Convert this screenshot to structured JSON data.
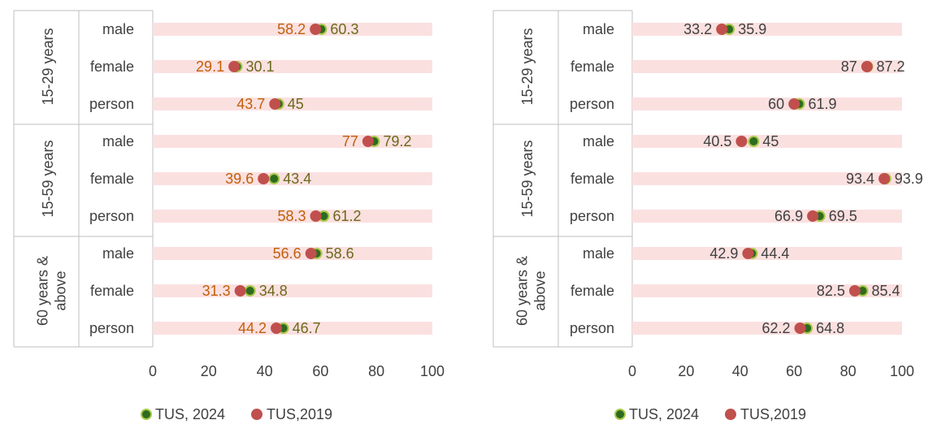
{
  "colors": {
    "band": "#fbe0e0",
    "tus2024_fill": "#2e6b1f",
    "tus2024_stroke": "#a9c948",
    "tus2019_fill": "#c0504d",
    "left_label_2019": "#c0600a",
    "left_label_2024": "#6a6a1a",
    "right_label": "#404040",
    "frame": "#bfbfbf"
  },
  "chart_data": [
    {
      "type": "dot",
      "xlim": [
        0,
        100
      ],
      "xticks": [
        0,
        20,
        40,
        60,
        80,
        100
      ],
      "legend": [
        "TUS, 2024",
        "TUS,2019"
      ],
      "groups": [
        {
          "label": "15-29 years",
          "rows": [
            {
              "cat": "male",
              "v2019": 58.2,
              "v2024": 60.3
            },
            {
              "cat": "female",
              "v2019": 29.1,
              "v2024": 30.1
            },
            {
              "cat": "person",
              "v2019": 43.7,
              "v2024": 45
            }
          ]
        },
        {
          "label": "15-59 years",
          "rows": [
            {
              "cat": "male",
              "v2019": 77,
              "v2024": 79.2
            },
            {
              "cat": "female",
              "v2019": 39.6,
              "v2024": 43.4
            },
            {
              "cat": "person",
              "v2019": 58.3,
              "v2024": 61.2
            }
          ]
        },
        {
          "label": "60 years & above",
          "label_lines": [
            "60 years &",
            "above"
          ],
          "rows": [
            {
              "cat": "male",
              "v2019": 56.6,
              "v2024": 58.6
            },
            {
              "cat": "female",
              "v2019": 31.3,
              "v2024": 34.8
            },
            {
              "cat": "person",
              "v2019": 44.2,
              "v2024": 46.7
            }
          ]
        }
      ]
    },
    {
      "type": "dot",
      "xlim": [
        0,
        100
      ],
      "xticks": [
        0,
        20,
        40,
        60,
        80,
        100
      ],
      "legend": [
        "TUS, 2024",
        "TUS,2019"
      ],
      "groups": [
        {
          "label": "15-29 years",
          "rows": [
            {
              "cat": "male",
              "v2019": 33.2,
              "v2024": 35.9
            },
            {
              "cat": "female",
              "v2019": 87,
              "v2024": 87.2
            },
            {
              "cat": "person",
              "v2019": 60,
              "v2024": 61.9
            }
          ]
        },
        {
          "label": "15-59 years",
          "rows": [
            {
              "cat": "male",
              "v2019": 40.5,
              "v2024": 45
            },
            {
              "cat": "female",
              "v2019": 93.4,
              "v2024": 93.9
            },
            {
              "cat": "person",
              "v2019": 66.9,
              "v2024": 69.5
            }
          ]
        },
        {
          "label": "60 years & above",
          "label_lines": [
            "60 years &",
            "above"
          ],
          "rows": [
            {
              "cat": "male",
              "v2019": 42.9,
              "v2024": 44.4
            },
            {
              "cat": "female",
              "v2019": 82.5,
              "v2024": 85.4
            },
            {
              "cat": "person",
              "v2019": 62.2,
              "v2024": 64.8
            }
          ]
        }
      ]
    }
  ]
}
